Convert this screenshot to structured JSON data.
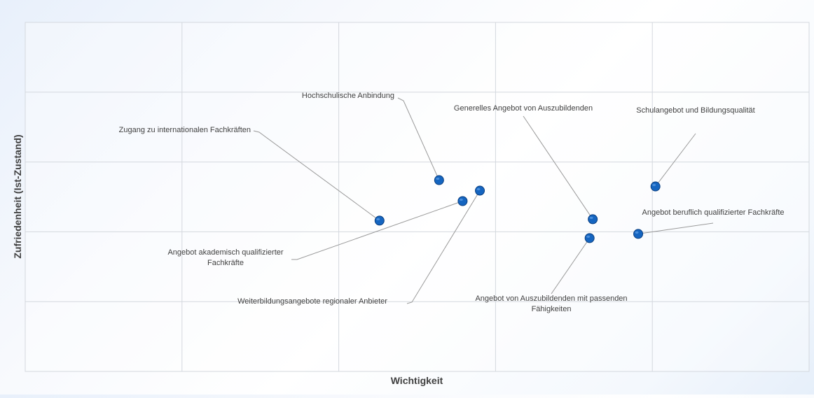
{
  "chart_data": {
    "type": "scatter",
    "xlabel": "Wichtigkeit",
    "ylabel": "Zufriedenheit (Ist-Zustand)",
    "xlim": [
      0,
      5
    ],
    "ylim": [
      0,
      5
    ],
    "grid": true,
    "tick_labels_visible": false,
    "marker_color": "#1565c0",
    "points": [
      {
        "label": "Zugang zu internationalen Fachkräften",
        "x": 2.26,
        "y": 2.16
      },
      {
        "label": "Hochschulische Anbindung",
        "x": 2.64,
        "y": 2.74
      },
      {
        "label": "Angebot akademisch qualifizierter Fachkräfte",
        "x": 2.79,
        "y": 2.44
      },
      {
        "label": "Weiterbildungsangebote regionaler Anbieter",
        "x": 2.9,
        "y": 2.59
      },
      {
        "label": "Generelles Angebot von Auszubildenden",
        "x": 3.62,
        "y": 2.18
      },
      {
        "label": "Angebot von Auszubildenden mit passenden Fähigkeiten",
        "x": 3.6,
        "y": 1.91
      },
      {
        "label": "Angebot beruflich qualifizierter Fachkräfte",
        "x": 3.91,
        "y": 1.97
      },
      {
        "label": "Schulangebot und Bildungsqualität",
        "x": 4.02,
        "y": 2.65
      }
    ]
  }
}
